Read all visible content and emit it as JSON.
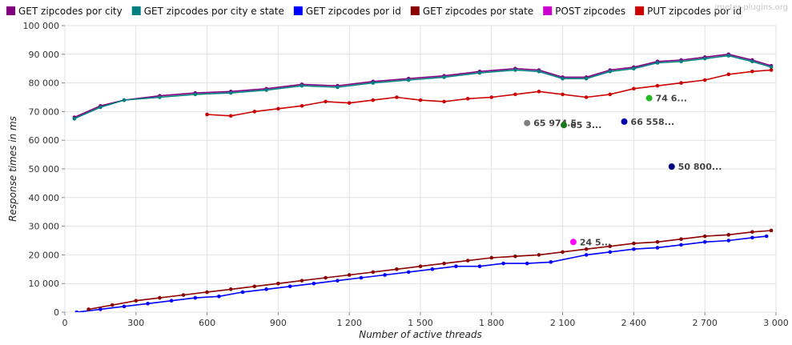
{
  "watermark": "jmeter-plugins.org",
  "chart_data": {
    "type": "line",
    "xlabel": "Number of active threads",
    "ylabel": "Response times in ms",
    "xlim": [
      0,
      3000
    ],
    "ylim": [
      0,
      100000
    ],
    "x_ticks": [
      0,
      300,
      600,
      900,
      1200,
      1500,
      1800,
      2100,
      2400,
      2700,
      3000
    ],
    "x_tick_labels": [
      "0",
      "300",
      "600",
      "900",
      "1 200",
      "1 500",
      "1 800",
      "2 100",
      "2 400",
      "2 700",
      "3 000"
    ],
    "y_ticks": [
      0,
      10000,
      20000,
      30000,
      40000,
      50000,
      60000,
      70000,
      80000,
      90000,
      100000
    ],
    "y_tick_labels": [
      "0",
      "10 000",
      "20 000",
      "30 000",
      "40 000",
      "50 000",
      "60 000",
      "70 000",
      "80 000",
      "90 000",
      "100 000"
    ],
    "grid": true,
    "legend_position": "top",
    "series": [
      {
        "name": "GET zipcodes por city",
        "color": "#800080",
        "points": [
          [
            40,
            68000
          ],
          [
            150,
            72000
          ],
          [
            250,
            74000
          ],
          [
            400,
            75500
          ],
          [
            550,
            76500
          ],
          [
            700,
            77000
          ],
          [
            850,
            78000
          ],
          [
            1000,
            79500
          ],
          [
            1150,
            79000
          ],
          [
            1300,
            80500
          ],
          [
            1450,
            81500
          ],
          [
            1600,
            82500
          ],
          [
            1750,
            84000
          ],
          [
            1900,
            85000
          ],
          [
            2000,
            84500
          ],
          [
            2100,
            82000
          ],
          [
            2200,
            82000
          ],
          [
            2300,
            84500
          ],
          [
            2400,
            85500
          ],
          [
            2500,
            87500
          ],
          [
            2600,
            88000
          ],
          [
            2700,
            89000
          ],
          [
            2800,
            90000
          ],
          [
            2900,
            88000
          ],
          [
            2980,
            86000
          ]
        ]
      },
      {
        "name": "GET zipcodes por city e state",
        "color": "#008080",
        "points": [
          [
            40,
            67500
          ],
          [
            150,
            71500
          ],
          [
            250,
            74000
          ],
          [
            400,
            75000
          ],
          [
            550,
            76000
          ],
          [
            700,
            76500
          ],
          [
            850,
            77500
          ],
          [
            1000,
            79000
          ],
          [
            1150,
            78500
          ],
          [
            1300,
            80000
          ],
          [
            1450,
            81000
          ],
          [
            1600,
            82000
          ],
          [
            1750,
            83500
          ],
          [
            1900,
            84500
          ],
          [
            2000,
            84000
          ],
          [
            2100,
            81500
          ],
          [
            2200,
            81500
          ],
          [
            2300,
            84000
          ],
          [
            2400,
            85000
          ],
          [
            2500,
            87000
          ],
          [
            2600,
            87500
          ],
          [
            2700,
            88500
          ],
          [
            2800,
            89500
          ],
          [
            2900,
            87500
          ],
          [
            2980,
            85500
          ]
        ]
      },
      {
        "name": "GET zipcodes por id",
        "color": "#0000ff",
        "points": [
          [
            50,
            0
          ],
          [
            150,
            1000
          ],
          [
            250,
            2000
          ],
          [
            350,
            3000
          ],
          [
            450,
            4000
          ],
          [
            550,
            5000
          ],
          [
            650,
            5500
          ],
          [
            750,
            7000
          ],
          [
            850,
            8000
          ],
          [
            950,
            9000
          ],
          [
            1050,
            10000
          ],
          [
            1150,
            11000
          ],
          [
            1250,
            12000
          ],
          [
            1350,
            13000
          ],
          [
            1450,
            14000
          ],
          [
            1550,
            15000
          ],
          [
            1650,
            16000
          ],
          [
            1750,
            16000
          ],
          [
            1850,
            17000
          ],
          [
            1950,
            17000
          ],
          [
            2050,
            17500
          ],
          [
            2200,
            20000
          ],
          [
            2300,
            21000
          ],
          [
            2400,
            22000
          ],
          [
            2500,
            22500
          ],
          [
            2600,
            23500
          ],
          [
            2700,
            24500
          ],
          [
            2800,
            25000
          ],
          [
            2900,
            26000
          ],
          [
            2960,
            26500
          ]
        ]
      },
      {
        "name": "GET zipcodes por state",
        "color": "#8b0000",
        "points": [
          [
            100,
            1000
          ],
          [
            200,
            2500
          ],
          [
            300,
            4000
          ],
          [
            400,
            5000
          ],
          [
            500,
            6000
          ],
          [
            600,
            7000
          ],
          [
            700,
            8000
          ],
          [
            800,
            9000
          ],
          [
            900,
            10000
          ],
          [
            1000,
            11000
          ],
          [
            1100,
            12000
          ],
          [
            1200,
            13000
          ],
          [
            1300,
            14000
          ],
          [
            1400,
            15000
          ],
          [
            1500,
            16000
          ],
          [
            1600,
            17000
          ],
          [
            1700,
            18000
          ],
          [
            1800,
            19000
          ],
          [
            1900,
            19500
          ],
          [
            2000,
            20000
          ],
          [
            2100,
            21000
          ],
          [
            2200,
            22000
          ],
          [
            2300,
            23000
          ],
          [
            2400,
            24000
          ],
          [
            2500,
            24500
          ],
          [
            2600,
            25500
          ],
          [
            2700,
            26500
          ],
          [
            2800,
            27000
          ],
          [
            2900,
            28000
          ],
          [
            2980,
            28500
          ]
        ]
      },
      {
        "name": "POST zipcodes",
        "color": "#cc00cc",
        "points": [
          [
            2145,
            24500
          ]
        ]
      },
      {
        "name": "PUT zipcodes por id",
        "color": "#cc0000",
        "points": [
          [
            600,
            69000
          ],
          [
            700,
            68500
          ],
          [
            800,
            70000
          ],
          [
            900,
            71000
          ],
          [
            1000,
            72000
          ],
          [
            1100,
            73500
          ],
          [
            1200,
            73000
          ],
          [
            1300,
            74000
          ],
          [
            1400,
            75000
          ],
          [
            1500,
            74000
          ],
          [
            1600,
            73500
          ],
          [
            1700,
            74500
          ],
          [
            1800,
            75000
          ],
          [
            1900,
            76000
          ],
          [
            2000,
            77000
          ],
          [
            2100,
            76000
          ],
          [
            2200,
            75000
          ],
          [
            2300,
            76000
          ],
          [
            2400,
            78000
          ],
          [
            2500,
            79000
          ],
          [
            2600,
            80000
          ],
          [
            2700,
            81000
          ],
          [
            2800,
            83000
          ],
          [
            2900,
            84000
          ],
          [
            2980,
            84500
          ]
        ]
      }
    ],
    "annotations": [
      {
        "label": "65 974.5",
        "x": 1950,
        "y": 66000,
        "color": "#808080"
      },
      {
        "label": "65 3...",
        "x": 2105,
        "y": 65300,
        "color": "#1a7a1a"
      },
      {
        "label": "66 558...",
        "x": 2360,
        "y": 66500,
        "color": "#0000aa"
      },
      {
        "label": "74 6...",
        "x": 2465,
        "y": 74700,
        "color": "#22bb22"
      },
      {
        "label": "50 800...",
        "x": 2560,
        "y": 50800,
        "color": "#000080"
      },
      {
        "label": "24 5...",
        "x": 2145,
        "y": 24500,
        "color": "#ff00ff"
      }
    ]
  }
}
